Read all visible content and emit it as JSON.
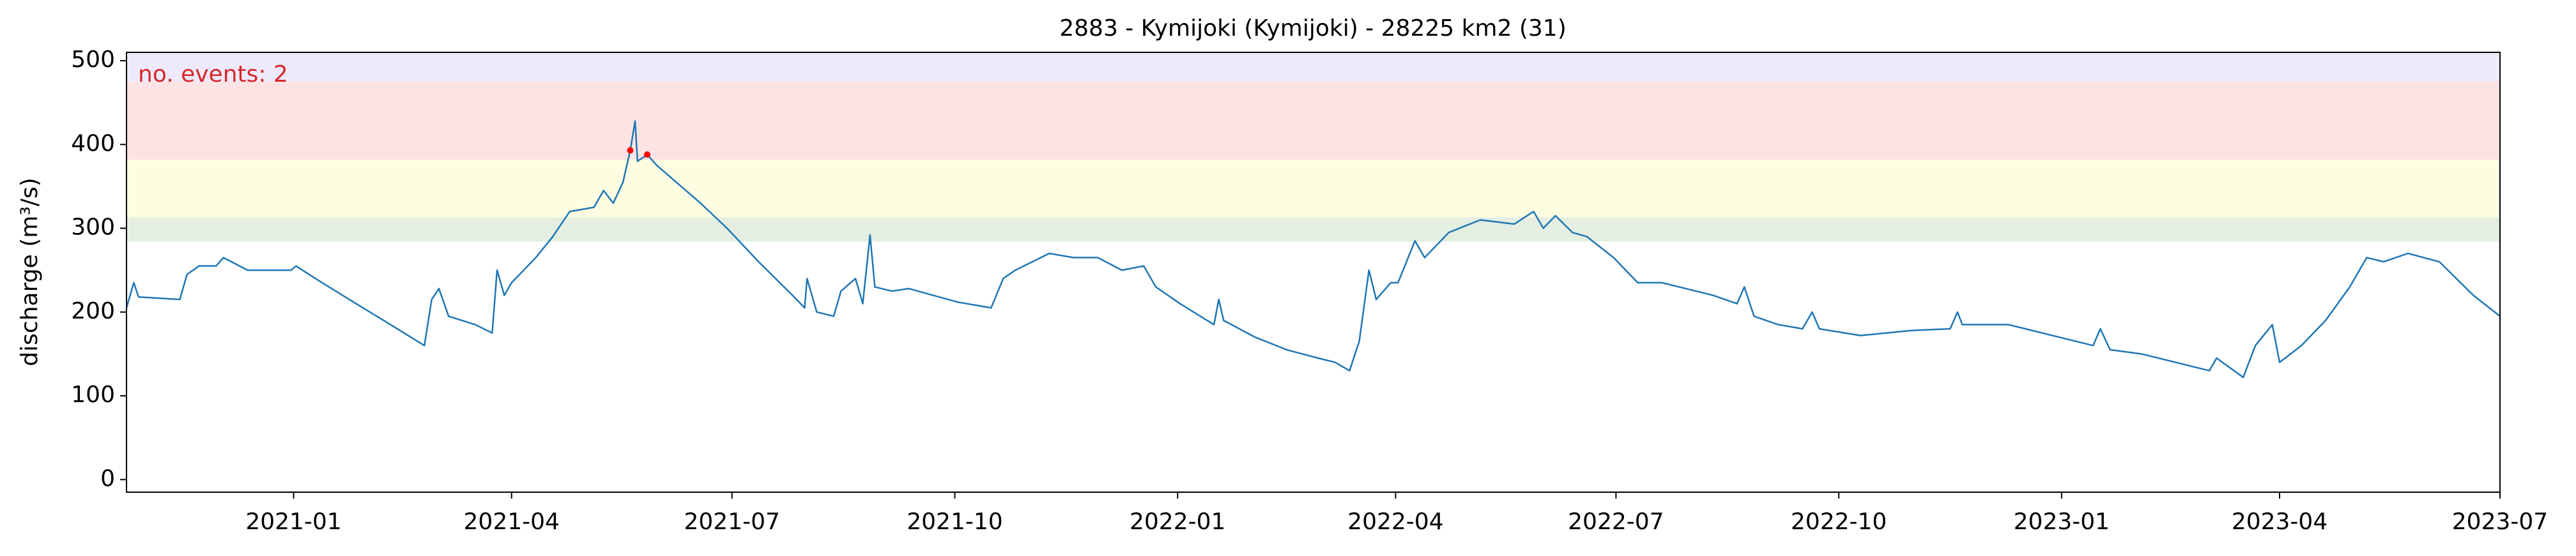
{
  "chart_data": {
    "type": "line",
    "title": "2883 - Kymijoki (Kymijoki) - 28225 km2 (31)",
    "y_label": "discharge (m³/s)",
    "annotation": "no. events: 2",
    "annotation_color": "#d62728",
    "xlim": [
      "2020-10-24",
      "2023-07-01"
    ],
    "xticks": [
      "2021-01",
      "2021-04",
      "2021-07",
      "2021-10",
      "2022-01",
      "2022-04",
      "2022-07",
      "2022-10",
      "2023-01",
      "2023-04",
      "2023-07"
    ],
    "ylim": [
      -15,
      510
    ],
    "yticks": [
      0,
      100,
      200,
      300,
      400,
      500
    ],
    "bands": [
      {
        "from": 284,
        "to": 313,
        "color": "#e4efe2"
      },
      {
        "from": 313,
        "to": 382,
        "color": "#fdfde2"
      },
      {
        "from": 382,
        "to": 475,
        "color": "#fde3e4"
      },
      {
        "from": 475,
        "to": 510,
        "color": "#efeafb"
      }
    ],
    "x": [
      "2020-10-24",
      "2020-10-27",
      "2020-10-29",
      "2020-11-15",
      "2020-11-18",
      "2020-11-23",
      "2020-11-30",
      "2020-12-03",
      "2020-12-13",
      "2020-12-31",
      "2021-01-02",
      "2021-01-10",
      "2021-01-24",
      "2021-02-10",
      "2021-02-24",
      "2021-02-27",
      "2021-03-02",
      "2021-03-06",
      "2021-03-17",
      "2021-03-24",
      "2021-03-26",
      "2021-03-29",
      "2021-04-01",
      "2021-04-11",
      "2021-04-18",
      "2021-04-25",
      "2021-05-05",
      "2021-05-09",
      "2021-05-13",
      "2021-05-17",
      "2021-05-20",
      "2021-05-22",
      "2021-05-23",
      "2021-05-27",
      "2021-05-31",
      "2021-06-08",
      "2021-06-18",
      "2021-06-29",
      "2021-07-12",
      "2021-07-26",
      "2021-07-31",
      "2021-08-01",
      "2021-08-05",
      "2021-08-12",
      "2021-08-15",
      "2021-08-21",
      "2021-08-24",
      "2021-08-27",
      "2021-08-29",
      "2021-09-05",
      "2021-09-12",
      "2021-09-22",
      "2021-10-02",
      "2021-10-16",
      "2021-10-21",
      "2021-10-26",
      "2021-11-02",
      "2021-11-09",
      "2021-11-19",
      "2021-11-29",
      "2021-12-09",
      "2021-12-18",
      "2021-12-23",
      "2022-01-02",
      "2022-01-16",
      "2022-01-18",
      "2022-01-20",
      "2022-02-02",
      "2022-02-15",
      "2022-02-28",
      "2022-03-07",
      "2022-03-13",
      "2022-03-17",
      "2022-03-21",
      "2022-03-24",
      "2022-03-30",
      "2022-04-02",
      "2022-04-09",
      "2022-04-13",
      "2022-04-23",
      "2022-05-06",
      "2022-05-20",
      "2022-05-28",
      "2022-06-01",
      "2022-06-06",
      "2022-06-13",
      "2022-06-19",
      "2022-06-30",
      "2022-07-10",
      "2022-07-20",
      "2022-07-27",
      "2022-08-10",
      "2022-08-20",
      "2022-08-23",
      "2022-08-27",
      "2022-09-06",
      "2022-09-16",
      "2022-09-20",
      "2022-09-23",
      "2022-10-10",
      "2022-10-31",
      "2022-11-16",
      "2022-11-19",
      "2022-11-21",
      "2022-12-10",
      "2022-12-31",
      "2023-01-14",
      "2023-01-17",
      "2023-01-21",
      "2023-02-03",
      "2023-02-17",
      "2023-03-03",
      "2023-03-06",
      "2023-03-17",
      "2023-03-22",
      "2023-03-29",
      "2023-04-01",
      "2023-04-10",
      "2023-04-20",
      "2023-04-30",
      "2023-05-07",
      "2023-05-14",
      "2023-05-24",
      "2023-06-06",
      "2023-06-20",
      "2023-07-01"
    ],
    "series": [
      {
        "name": "discharge",
        "color": "#1f77b4",
        "values": [
          205,
          235,
          218,
          215,
          245,
          255,
          255,
          265,
          250,
          250,
          255,
          240,
          215,
          185,
          160,
          215,
          228,
          195,
          185,
          175,
          250,
          220,
          235,
          265,
          290,
          320,
          325,
          345,
          330,
          355,
          393,
          428,
          380,
          388,
          375,
          355,
          330,
          300,
          260,
          220,
          205,
          240,
          200,
          195,
          225,
          240,
          210,
          292,
          230,
          225,
          228,
          220,
          212,
          205,
          240,
          250,
          260,
          270,
          265,
          265,
          250,
          255,
          230,
          210,
          185,
          215,
          190,
          170,
          155,
          145,
          140,
          130,
          165,
          250,
          215,
          235,
          235,
          285,
          265,
          295,
          310,
          305,
          320,
          300,
          315,
          295,
          290,
          265,
          235,
          235,
          230,
          220,
          210,
          230,
          195,
          185,
          180,
          200,
          180,
          172,
          178,
          180,
          200,
          185,
          185,
          170,
          160,
          180,
          155,
          150,
          140,
          130,
          145,
          122,
          160,
          185,
          140,
          160,
          190,
          230,
          265,
          260,
          270,
          260,
          220,
          195
        ]
      }
    ],
    "events": {
      "color": "#ff0000",
      "x": [
        "2021-05-20",
        "2021-05-27"
      ],
      "values": [
        393,
        388
      ]
    }
  }
}
